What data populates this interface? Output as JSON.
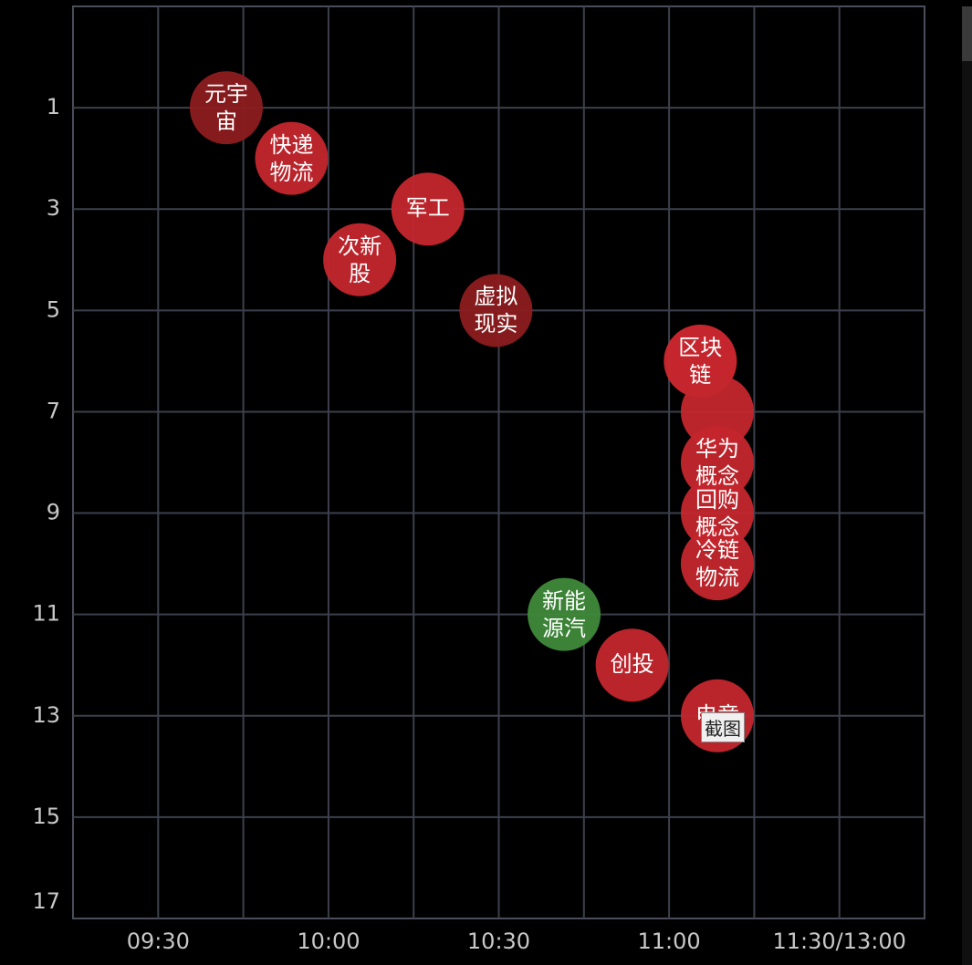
{
  "chart_data": {
    "type": "scatter",
    "xlim": [
      555,
      705
    ],
    "ylim": [
      -1,
      17
    ],
    "y_inverted": true,
    "grid": true,
    "xticks": [
      {
        "value": 570,
        "label": "09:30"
      },
      {
        "value": 585,
        "label": null
      },
      {
        "value": 600,
        "label": "10:00"
      },
      {
        "value": 615,
        "label": null
      },
      {
        "value": 630,
        "label": "10:30"
      },
      {
        "value": 645,
        "label": null
      },
      {
        "value": 660,
        "label": "11:00"
      },
      {
        "value": 675,
        "label": null
      },
      {
        "value": 690,
        "label": "11:30/13:00"
      }
    ],
    "yticks": [
      1,
      3,
      5,
      7,
      9,
      11,
      13,
      15,
      17
    ],
    "points": [
      {
        "name": "元宇宙",
        "x": 582,
        "y": 1,
        "color": "#8c1c1f"
      },
      {
        "name": "快递物流",
        "x": 593.5,
        "y": 2,
        "color": "#c4262d"
      },
      {
        "name": "军工",
        "x": 617.5,
        "y": 3,
        "color": "#c4262d"
      },
      {
        "name": "次新股",
        "x": 605.5,
        "y": 4,
        "color": "#c4262d"
      },
      {
        "name": "虚拟现实",
        "x": 629.5,
        "y": 5,
        "color": "#8c1c1f"
      },
      {
        "name": "区块链",
        "x": 665.5,
        "y": 6,
        "color": "#d0282f"
      },
      {
        "name": null,
        "x": 668.5,
        "y": 7,
        "color": "#c4262d"
      },
      {
        "name": "华为概念",
        "x": 668.5,
        "y": 8,
        "color": "#c4262d"
      },
      {
        "name": "回购概念",
        "x": 668.5,
        "y": 9,
        "color": "#c4262d"
      },
      {
        "name": "冷链物流",
        "x": 668.5,
        "y": 10,
        "color": "#c4262d"
      },
      {
        "name": "新能源汽",
        "x": 641.5,
        "y": 11,
        "color": "#3f8a3a"
      },
      {
        "name": "创投",
        "x": 653.5,
        "y": 12,
        "color": "#c4262d"
      },
      {
        "name": "电竞",
        "x": 668.5,
        "y": 13,
        "color": "#c4262d"
      }
    ],
    "tooltip": "截图"
  }
}
